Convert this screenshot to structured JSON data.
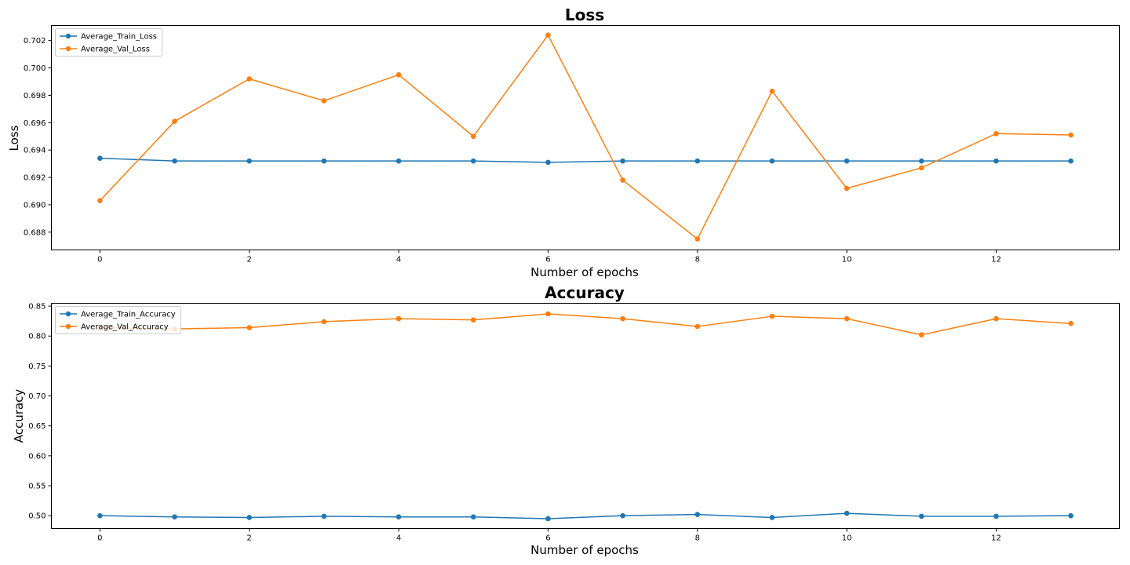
{
  "chart_data": [
    {
      "type": "line",
      "title": "Loss",
      "xlabel": "Number of epochs",
      "ylabel": "Loss",
      "xlim": [
        -0.65,
        13.65
      ],
      "ylim": [
        0.6867,
        0.7031
      ],
      "xticks": [
        0,
        2,
        4,
        6,
        8,
        10,
        12
      ],
      "yticks": [
        0.688,
        0.69,
        0.692,
        0.694,
        0.696,
        0.698,
        0.7,
        0.702
      ],
      "ytick_decimals": 3,
      "grid": false,
      "legend_position": "top-left",
      "x": [
        0,
        1,
        2,
        3,
        4,
        5,
        6,
        7,
        8,
        9,
        10,
        11,
        12,
        13
      ],
      "series": [
        {
          "name": "Average_Train_Loss",
          "color": "#1f77b4",
          "values": [
            0.6934,
            0.6932,
            0.6932,
            0.6932,
            0.6932,
            0.6932,
            0.6931,
            0.6932,
            0.6932,
            0.6932,
            0.6932,
            0.6932,
            0.6932,
            0.6932
          ]
        },
        {
          "name": "Average_Val_Loss",
          "color": "#ff7f0e",
          "values": [
            0.6903,
            0.6961,
            0.6992,
            0.6976,
            0.6995,
            0.695,
            0.7024,
            0.6918,
            0.6875,
            0.6983,
            0.6912,
            0.6927,
            0.6952,
            0.6951
          ]
        }
      ]
    },
    {
      "type": "line",
      "title": "Accuracy",
      "xlabel": "Number of epochs",
      "ylabel": "Accuracy",
      "xlim": [
        -0.65,
        13.65
      ],
      "ylim": [
        0.4786,
        0.8547
      ],
      "xticks": [
        0,
        2,
        4,
        6,
        8,
        10,
        12
      ],
      "yticks": [
        0.5,
        0.55,
        0.6,
        0.65,
        0.7,
        0.75,
        0.8,
        0.85
      ],
      "ytick_decimals": 2,
      "grid": false,
      "legend_position": "top-left",
      "x": [
        0,
        1,
        2,
        3,
        4,
        5,
        6,
        7,
        8,
        9,
        10,
        11,
        12,
        13
      ],
      "series": [
        {
          "name": "Average_Train_Accuracy",
          "color": "#1f77b4",
          "values": [
            0.5,
            0.498,
            0.497,
            0.499,
            0.498,
            0.498,
            0.495,
            0.5,
            0.502,
            0.497,
            0.504,
            0.499,
            0.499,
            0.5
          ]
        },
        {
          "name": "Average_Val_Accuracy",
          "color": "#ff7f0e",
          "values": [
            0.814,
            0.812,
            0.814,
            0.824,
            0.829,
            0.827,
            0.837,
            0.829,
            0.816,
            0.833,
            0.829,
            0.802,
            0.829,
            0.821
          ]
        }
      ]
    }
  ]
}
